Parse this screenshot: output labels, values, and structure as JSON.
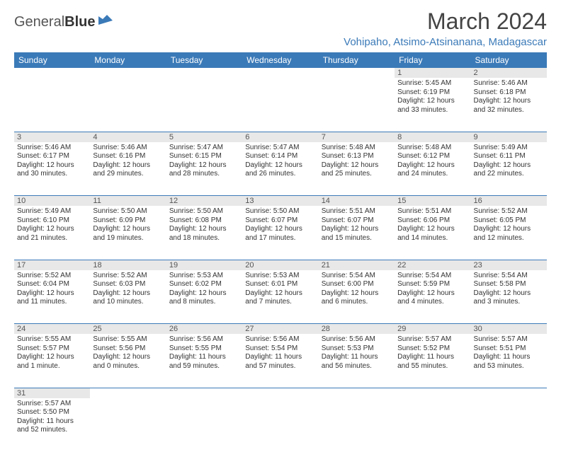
{
  "brand": {
    "text1": "General",
    "text2": "Blue"
  },
  "title": "March 2024",
  "location": "Vohipaho, Atsimo-Atsinanana, Madagascar",
  "colors": {
    "header_bg": "#3b7ab8",
    "header_fg": "#ffffff",
    "daynum_bg": "#e8e8e8",
    "border": "#3b7ab8",
    "title_color": "#444444",
    "location_color": "#3b7ab8"
  },
  "day_headers": [
    "Sunday",
    "Monday",
    "Tuesday",
    "Wednesday",
    "Thursday",
    "Friday",
    "Saturday"
  ],
  "weeks": [
    {
      "nums": [
        "",
        "",
        "",
        "",
        "",
        "1",
        "2"
      ],
      "cells": [
        null,
        null,
        null,
        null,
        null,
        {
          "sunrise": "Sunrise: 5:45 AM",
          "sunset": "Sunset: 6:19 PM",
          "d1": "Daylight: 12 hours",
          "d2": "and 33 minutes."
        },
        {
          "sunrise": "Sunrise: 5:46 AM",
          "sunset": "Sunset: 6:18 PM",
          "d1": "Daylight: 12 hours",
          "d2": "and 32 minutes."
        }
      ]
    },
    {
      "nums": [
        "3",
        "4",
        "5",
        "6",
        "7",
        "8",
        "9"
      ],
      "cells": [
        {
          "sunrise": "Sunrise: 5:46 AM",
          "sunset": "Sunset: 6:17 PM",
          "d1": "Daylight: 12 hours",
          "d2": "and 30 minutes."
        },
        {
          "sunrise": "Sunrise: 5:46 AM",
          "sunset": "Sunset: 6:16 PM",
          "d1": "Daylight: 12 hours",
          "d2": "and 29 minutes."
        },
        {
          "sunrise": "Sunrise: 5:47 AM",
          "sunset": "Sunset: 6:15 PM",
          "d1": "Daylight: 12 hours",
          "d2": "and 28 minutes."
        },
        {
          "sunrise": "Sunrise: 5:47 AM",
          "sunset": "Sunset: 6:14 PM",
          "d1": "Daylight: 12 hours",
          "d2": "and 26 minutes."
        },
        {
          "sunrise": "Sunrise: 5:48 AM",
          "sunset": "Sunset: 6:13 PM",
          "d1": "Daylight: 12 hours",
          "d2": "and 25 minutes."
        },
        {
          "sunrise": "Sunrise: 5:48 AM",
          "sunset": "Sunset: 6:12 PM",
          "d1": "Daylight: 12 hours",
          "d2": "and 24 minutes."
        },
        {
          "sunrise": "Sunrise: 5:49 AM",
          "sunset": "Sunset: 6:11 PM",
          "d1": "Daylight: 12 hours",
          "d2": "and 22 minutes."
        }
      ]
    },
    {
      "nums": [
        "10",
        "11",
        "12",
        "13",
        "14",
        "15",
        "16"
      ],
      "cells": [
        {
          "sunrise": "Sunrise: 5:49 AM",
          "sunset": "Sunset: 6:10 PM",
          "d1": "Daylight: 12 hours",
          "d2": "and 21 minutes."
        },
        {
          "sunrise": "Sunrise: 5:50 AM",
          "sunset": "Sunset: 6:09 PM",
          "d1": "Daylight: 12 hours",
          "d2": "and 19 minutes."
        },
        {
          "sunrise": "Sunrise: 5:50 AM",
          "sunset": "Sunset: 6:08 PM",
          "d1": "Daylight: 12 hours",
          "d2": "and 18 minutes."
        },
        {
          "sunrise": "Sunrise: 5:50 AM",
          "sunset": "Sunset: 6:07 PM",
          "d1": "Daylight: 12 hours",
          "d2": "and 17 minutes."
        },
        {
          "sunrise": "Sunrise: 5:51 AM",
          "sunset": "Sunset: 6:07 PM",
          "d1": "Daylight: 12 hours",
          "d2": "and 15 minutes."
        },
        {
          "sunrise": "Sunrise: 5:51 AM",
          "sunset": "Sunset: 6:06 PM",
          "d1": "Daylight: 12 hours",
          "d2": "and 14 minutes."
        },
        {
          "sunrise": "Sunrise: 5:52 AM",
          "sunset": "Sunset: 6:05 PM",
          "d1": "Daylight: 12 hours",
          "d2": "and 12 minutes."
        }
      ]
    },
    {
      "nums": [
        "17",
        "18",
        "19",
        "20",
        "21",
        "22",
        "23"
      ],
      "cells": [
        {
          "sunrise": "Sunrise: 5:52 AM",
          "sunset": "Sunset: 6:04 PM",
          "d1": "Daylight: 12 hours",
          "d2": "and 11 minutes."
        },
        {
          "sunrise": "Sunrise: 5:52 AM",
          "sunset": "Sunset: 6:03 PM",
          "d1": "Daylight: 12 hours",
          "d2": "and 10 minutes."
        },
        {
          "sunrise": "Sunrise: 5:53 AM",
          "sunset": "Sunset: 6:02 PM",
          "d1": "Daylight: 12 hours",
          "d2": "and 8 minutes."
        },
        {
          "sunrise": "Sunrise: 5:53 AM",
          "sunset": "Sunset: 6:01 PM",
          "d1": "Daylight: 12 hours",
          "d2": "and 7 minutes."
        },
        {
          "sunrise": "Sunrise: 5:54 AM",
          "sunset": "Sunset: 6:00 PM",
          "d1": "Daylight: 12 hours",
          "d2": "and 6 minutes."
        },
        {
          "sunrise": "Sunrise: 5:54 AM",
          "sunset": "Sunset: 5:59 PM",
          "d1": "Daylight: 12 hours",
          "d2": "and 4 minutes."
        },
        {
          "sunrise": "Sunrise: 5:54 AM",
          "sunset": "Sunset: 5:58 PM",
          "d1": "Daylight: 12 hours",
          "d2": "and 3 minutes."
        }
      ]
    },
    {
      "nums": [
        "24",
        "25",
        "26",
        "27",
        "28",
        "29",
        "30"
      ],
      "cells": [
        {
          "sunrise": "Sunrise: 5:55 AM",
          "sunset": "Sunset: 5:57 PM",
          "d1": "Daylight: 12 hours",
          "d2": "and 1 minute."
        },
        {
          "sunrise": "Sunrise: 5:55 AM",
          "sunset": "Sunset: 5:56 PM",
          "d1": "Daylight: 12 hours",
          "d2": "and 0 minutes."
        },
        {
          "sunrise": "Sunrise: 5:56 AM",
          "sunset": "Sunset: 5:55 PM",
          "d1": "Daylight: 11 hours",
          "d2": "and 59 minutes."
        },
        {
          "sunrise": "Sunrise: 5:56 AM",
          "sunset": "Sunset: 5:54 PM",
          "d1": "Daylight: 11 hours",
          "d2": "and 57 minutes."
        },
        {
          "sunrise": "Sunrise: 5:56 AM",
          "sunset": "Sunset: 5:53 PM",
          "d1": "Daylight: 11 hours",
          "d2": "and 56 minutes."
        },
        {
          "sunrise": "Sunrise: 5:57 AM",
          "sunset": "Sunset: 5:52 PM",
          "d1": "Daylight: 11 hours",
          "d2": "and 55 minutes."
        },
        {
          "sunrise": "Sunrise: 5:57 AM",
          "sunset": "Sunset: 5:51 PM",
          "d1": "Daylight: 11 hours",
          "d2": "and 53 minutes."
        }
      ]
    },
    {
      "nums": [
        "31",
        "",
        "",
        "",
        "",
        "",
        ""
      ],
      "cells": [
        {
          "sunrise": "Sunrise: 5:57 AM",
          "sunset": "Sunset: 5:50 PM",
          "d1": "Daylight: 11 hours",
          "d2": "and 52 minutes."
        },
        null,
        null,
        null,
        null,
        null,
        null
      ]
    }
  ]
}
